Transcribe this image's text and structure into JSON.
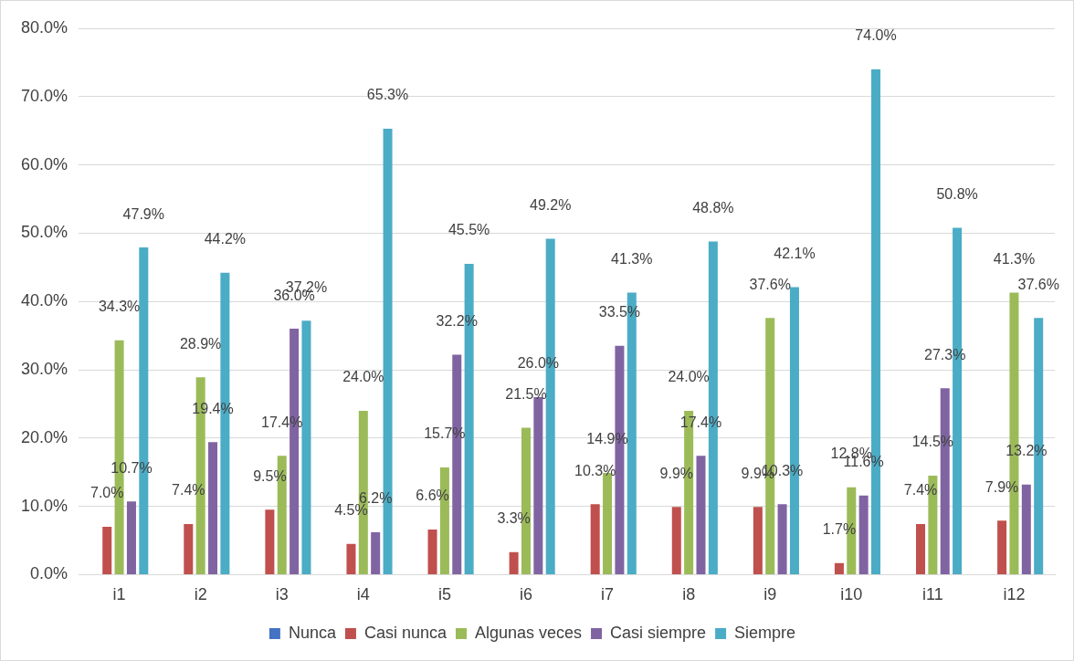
{
  "chart_data": {
    "type": "bar",
    "categories": [
      "i1",
      "i2",
      "i3",
      "i4",
      "i5",
      "i6",
      "i7",
      "i8",
      "i9",
      "i10",
      "i11",
      "i12"
    ],
    "series": [
      {
        "name": "Nunca",
        "color": "#4472c4",
        "values": [
          0,
          0,
          0,
          0,
          0,
          0,
          0,
          0,
          0,
          0,
          0,
          0
        ]
      },
      {
        "name": "Casi nunca",
        "color": "#c0504d",
        "values": [
          7.0,
          7.4,
          9.5,
          4.5,
          6.6,
          3.3,
          10.3,
          9.9,
          9.9,
          1.7,
          7.4,
          7.9
        ],
        "value_labels": [
          "7.0%",
          "7.4%",
          "9.5%",
          "4.5%",
          "6.6%",
          "3.3%",
          "10.3%",
          "9.9%",
          "9.9%",
          "1.7%",
          "7.4%",
          "7.9%"
        ]
      },
      {
        "name": "Algunas veces",
        "color": "#9bbb59",
        "values": [
          34.3,
          28.9,
          17.4,
          24.0,
          15.7,
          21.5,
          14.9,
          24.0,
          37.6,
          12.8,
          14.5,
          41.3
        ],
        "value_labels": [
          "34.3%",
          "28.9%",
          "17.4%",
          "24.0%",
          "15.7%",
          "21.5%",
          "14.9%",
          "24.0%",
          "37.6%",
          "12.8%",
          "14.5%",
          "41.3%"
        ]
      },
      {
        "name": "Casi siempre",
        "color": "#8064a2",
        "values": [
          10.7,
          19.4,
          36.0,
          6.2,
          32.2,
          26.0,
          33.5,
          17.4,
          10.3,
          11.6,
          27.3,
          13.2
        ],
        "value_labels": [
          "10.7%",
          "19.4%",
          "36.0%",
          "6.2%",
          "32.2%",
          "26.0%",
          "33.5%",
          "17.4%",
          "10.3%",
          "11.6%",
          "27.3%",
          "13.2%"
        ]
      },
      {
        "name": "Siempre",
        "color": "#4bacc6",
        "values": [
          47.9,
          44.2,
          37.2,
          65.3,
          45.5,
          49.2,
          41.3,
          48.8,
          42.1,
          74.0,
          50.8,
          37.6
        ],
        "value_labels": [
          "47.9%",
          "44.2%",
          "37.2%",
          "65.3%",
          "45.5%",
          "49.2%",
          "41.3%",
          "48.8%",
          "42.1%",
          "74.0%",
          "50.8%",
          "37.6%"
        ]
      }
    ],
    "ylim": [
      0,
      80
    ],
    "yticks": [
      {
        "value": 0,
        "label": "0.0%"
      },
      {
        "value": 10,
        "label": "10.0%"
      },
      {
        "value": 20,
        "label": "20.0%"
      },
      {
        "value": 30,
        "label": "30.0%"
      },
      {
        "value": 40,
        "label": "40.0%"
      },
      {
        "value": 50,
        "label": "50.0%"
      },
      {
        "value": 60,
        "label": "60.0%"
      },
      {
        "value": 70,
        "label": "70.0%"
      },
      {
        "value": 80,
        "label": "80.0%"
      }
    ],
    "grid": "y",
    "legend": "bottom"
  }
}
